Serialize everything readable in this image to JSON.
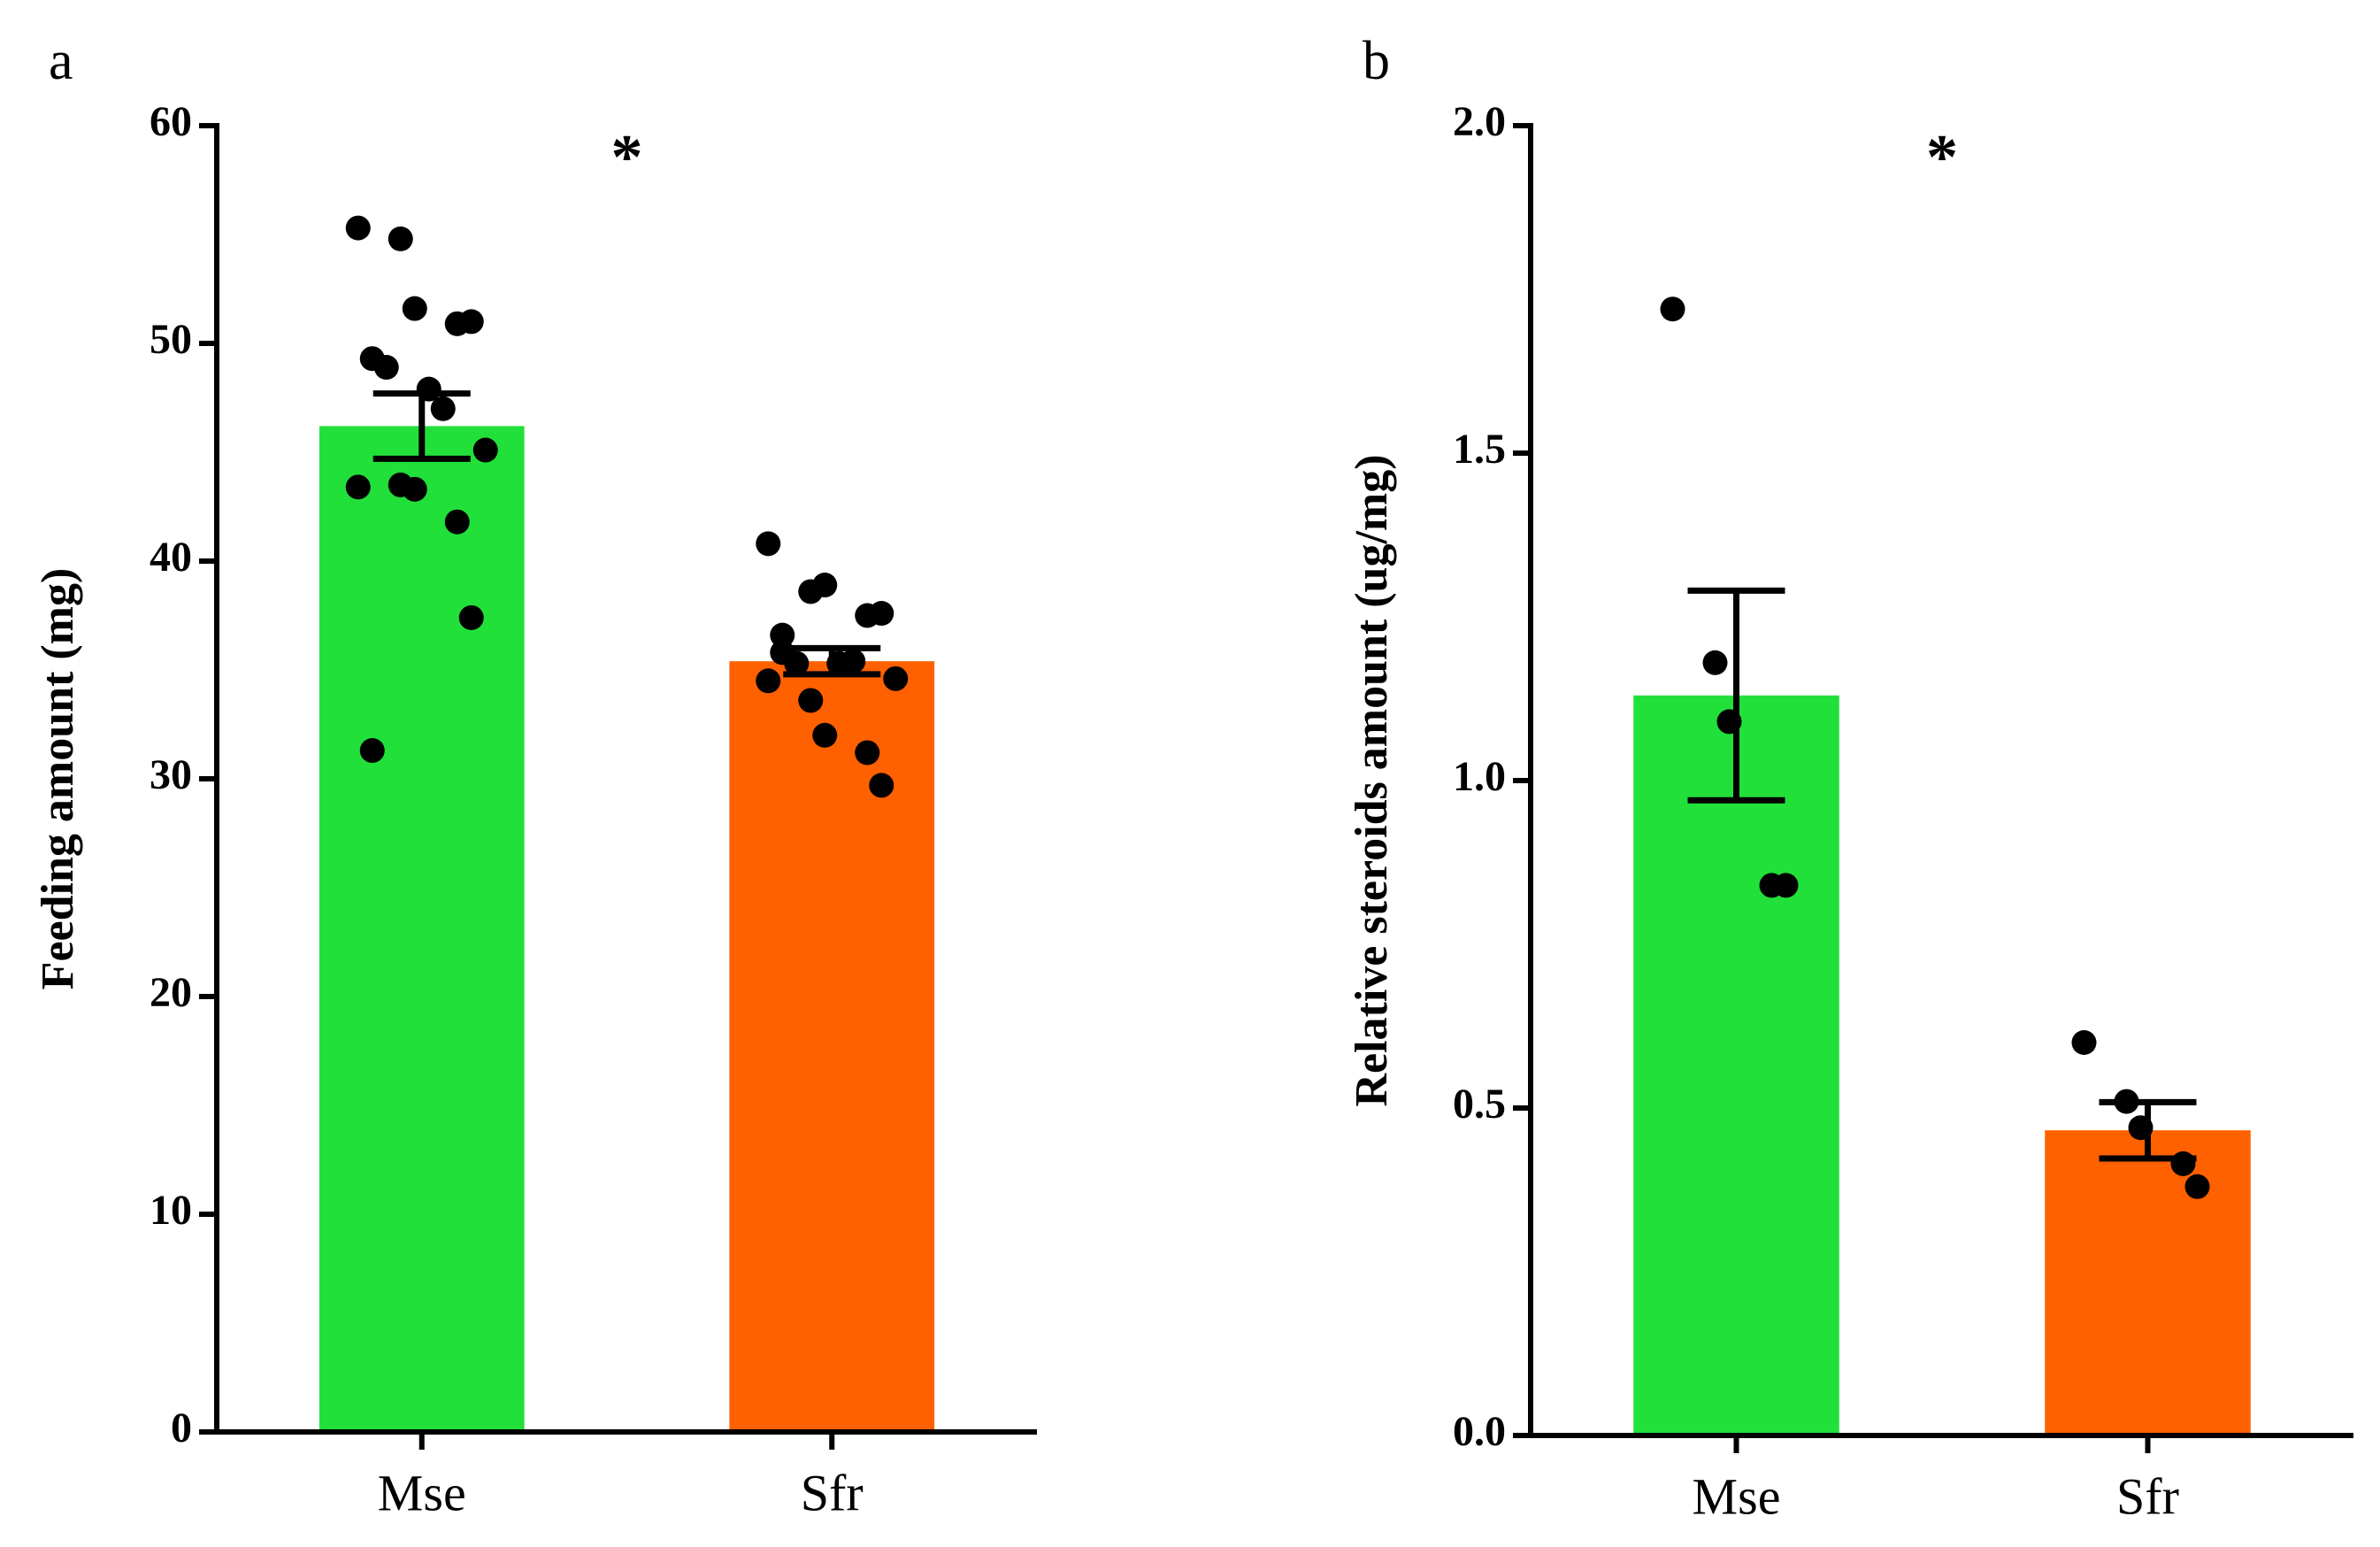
{
  "chart_data": [
    {
      "type": "bar",
      "panel": "a",
      "annotation": "*",
      "y_label": "Feeding amount (mg)",
      "categories": [
        "Mse",
        "Sfr"
      ],
      "values": [
        46.2,
        35.4
      ],
      "errors": [
        1.5,
        0.6
      ],
      "colors": [
        "#22e03a",
        "#ff6000"
      ],
      "points": [
        [
          55.3,
          54.8,
          51.6,
          50.9,
          51.0,
          49.3,
          48.9,
          47.9,
          47.0,
          45.1,
          43.4,
          43.5,
          43.3,
          41.8,
          37.4,
          31.3
        ],
        [
          40.8,
          38.6,
          38.9,
          37.5,
          37.6,
          36.6,
          35.3,
          35.3,
          35.4,
          34.6,
          34.5,
          33.6,
          32.0,
          31.2,
          29.7,
          35.8
        ]
      ],
      "ylim": [
        0,
        60
      ],
      "yticks": [
        0,
        10,
        20,
        30,
        40,
        50,
        60
      ]
    },
    {
      "type": "bar",
      "panel": "b",
      "annotation": "*",
      "y_label": "Relative steroids amount (ug/mg)",
      "categories": [
        "Mse",
        "Sfr"
      ],
      "values": [
        1.13,
        0.466
      ],
      "errors": [
        0.16,
        0.043
      ],
      "colors": [
        "#22e03a",
        "#ff6000"
      ],
      "points": [
        [
          1.72,
          1.18,
          1.09,
          0.84,
          0.84
        ],
        [
          0.6,
          0.51,
          0.47,
          0.415,
          0.38
        ]
      ],
      "ylim": [
        0,
        2.0
      ],
      "yticks": [
        {
          "value": 0,
          "label": "0.0"
        },
        0.5,
        {
          "value": 1,
          "label": "1.0"
        },
        1.5,
        {
          "value": 2,
          "label": "2.0"
        }
      ]
    }
  ]
}
